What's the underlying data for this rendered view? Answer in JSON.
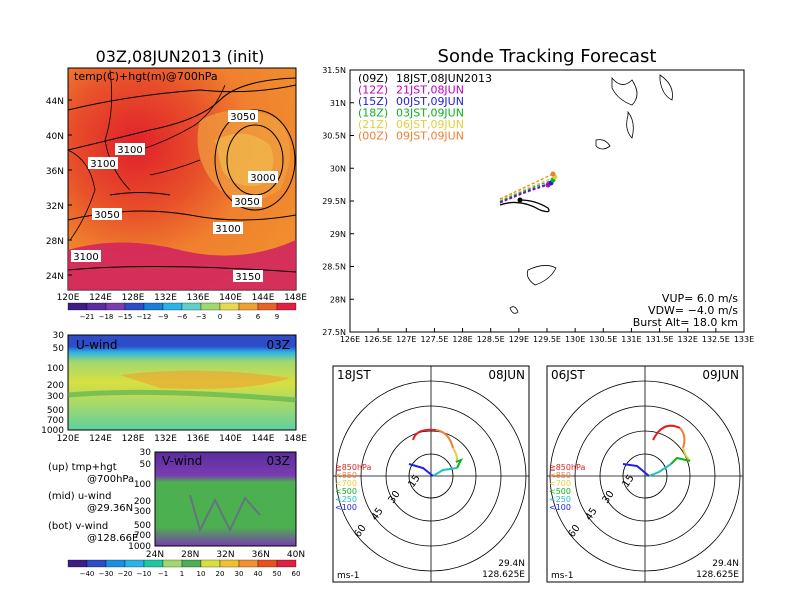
{
  "map_panel": {
    "title": "03Z,08JUN2013 (init)",
    "field_label": "temp(C)+hgt(m)@700hPa",
    "lat_labels": [
      "44N",
      "40N",
      "36N",
      "32N",
      "28N",
      "24N"
    ],
    "lon_labels": [
      "120E",
      "124E",
      "128E",
      "132E",
      "136E",
      "140E",
      "144E",
      "148E"
    ],
    "contour_labels": [
      "3050",
      "3100",
      "3000",
      "3050",
      "3050",
      "3100",
      "3100",
      "3100",
      "3150"
    ],
    "colorbar_labels": [
      "−21",
      "−18",
      "−15",
      "−12",
      "−9",
      "−6",
      "−3",
      "0",
      "3",
      "6",
      "9"
    ],
    "colorbar_colors": [
      "#3b1f87",
      "#5a2da0",
      "#7a3cb0",
      "#2d4cc8",
      "#1a7fd8",
      "#29b3e6",
      "#5fd0c8",
      "#a0d870",
      "#e8d850",
      "#f0a030",
      "#e8602a",
      "#e02040"
    ]
  },
  "uwind_panel": {
    "label": "U-wind",
    "time": "03Z",
    "p_labels": [
      "30",
      "50",
      "100",
      "200",
      "300",
      "500",
      "700",
      "1000"
    ],
    "lon_labels": [
      "120E",
      "124E",
      "128E",
      "132E",
      "136E",
      "140E",
      "144E",
      "148E"
    ]
  },
  "vwind_panel": {
    "label": "V-wind",
    "time": "03Z",
    "p_labels": [
      "30",
      "50",
      "100",
      "200",
      "300",
      "500",
      "700",
      "1000"
    ],
    "lat_labels": [
      "24N",
      "28N",
      "32N",
      "36N",
      "40N"
    ]
  },
  "legend_text": {
    "up1": "(up) tmp+hgt",
    "up2": "@700hPa",
    "mid1": "(mid) u-wind",
    "mid2": "@29.36N",
    "bot1": "(bot) v-wind",
    "bot2": "@128.66E"
  },
  "wind_colorbar": {
    "labels": [
      "−40",
      "−30",
      "−20",
      "−10",
      "−1",
      "1",
      "10",
      "20",
      "30",
      "40",
      "50",
      "60"
    ],
    "colors": [
      "#3b1f87",
      "#2d4cc8",
      "#1a90e0",
      "#29b3e6",
      "#1ec8a0",
      "#a0d870",
      "#4caf50",
      "#d8e040",
      "#f0c030",
      "#f09030",
      "#e85020",
      "#e02040"
    ]
  },
  "tracking_panel": {
    "title": "Sonde Tracking Forecast",
    "lat_labels": [
      "31.5N",
      "31N",
      "30.5N",
      "30N",
      "29.5N",
      "29N",
      "28.5N",
      "28N",
      "27.5N"
    ],
    "lon_labels": [
      "126E",
      "126.5E",
      "127E",
      "127.5E",
      "128E",
      "128.5E",
      "129E",
      "129.5E",
      "130E",
      "130.5E",
      "131E",
      "131.5E",
      "132E",
      "132.5E",
      "133E"
    ],
    "legend": [
      {
        "code": "(09Z)",
        "time": "18JST,08JUN2013",
        "color": "#000000"
      },
      {
        "code": "(12Z)",
        "time": "21JST,08JUN",
        "color": "#c000c0"
      },
      {
        "code": "(15Z)",
        "time": "00JST,09JUN",
        "color": "#2020e0"
      },
      {
        "code": "(18Z)",
        "time": "03JST,09JUN",
        "color": "#10b020"
      },
      {
        "code": "(21Z)",
        "time": "06JST,09JUN",
        "color": "#e0d040"
      },
      {
        "code": "(00Z)",
        "time": "09JST,09JUN",
        "color": "#f08030"
      }
    ],
    "params": {
      "vup": "VUP= 6.0 m/s",
      "vdw": "VDW= −4.0 m/s",
      "burst": "Burst Alt= 18.0 km"
    }
  },
  "hodo_left": {
    "time": "18JST",
    "date": "08JUN",
    "ring_labels": [
      "15",
      "30",
      "45",
      "60"
    ],
    "levels": [
      "≧850hPa",
      "<850",
      "<700",
      "<500",
      "<250",
      "<100"
    ],
    "level_colors": [
      "#e02020",
      "#f08030",
      "#e0d040",
      "#10b020",
      "#20c0c0",
      "#2020e0"
    ],
    "lat": "29.4N",
    "lon": "128.625E",
    "unit": "ms-1"
  },
  "hodo_right": {
    "time": "06JST",
    "date": "09JUN",
    "ring_labels": [
      "15",
      "30",
      "45",
      "60"
    ],
    "levels": [
      "≧850hPa",
      "<850",
      "<700",
      "<500",
      "<250",
      "<100"
    ],
    "level_colors": [
      "#e02020",
      "#f08030",
      "#e0d040",
      "#10b020",
      "#20c0c0",
      "#2020e0"
    ],
    "lat": "29.4N",
    "lon": "128.625E",
    "unit": "ms-1"
  }
}
